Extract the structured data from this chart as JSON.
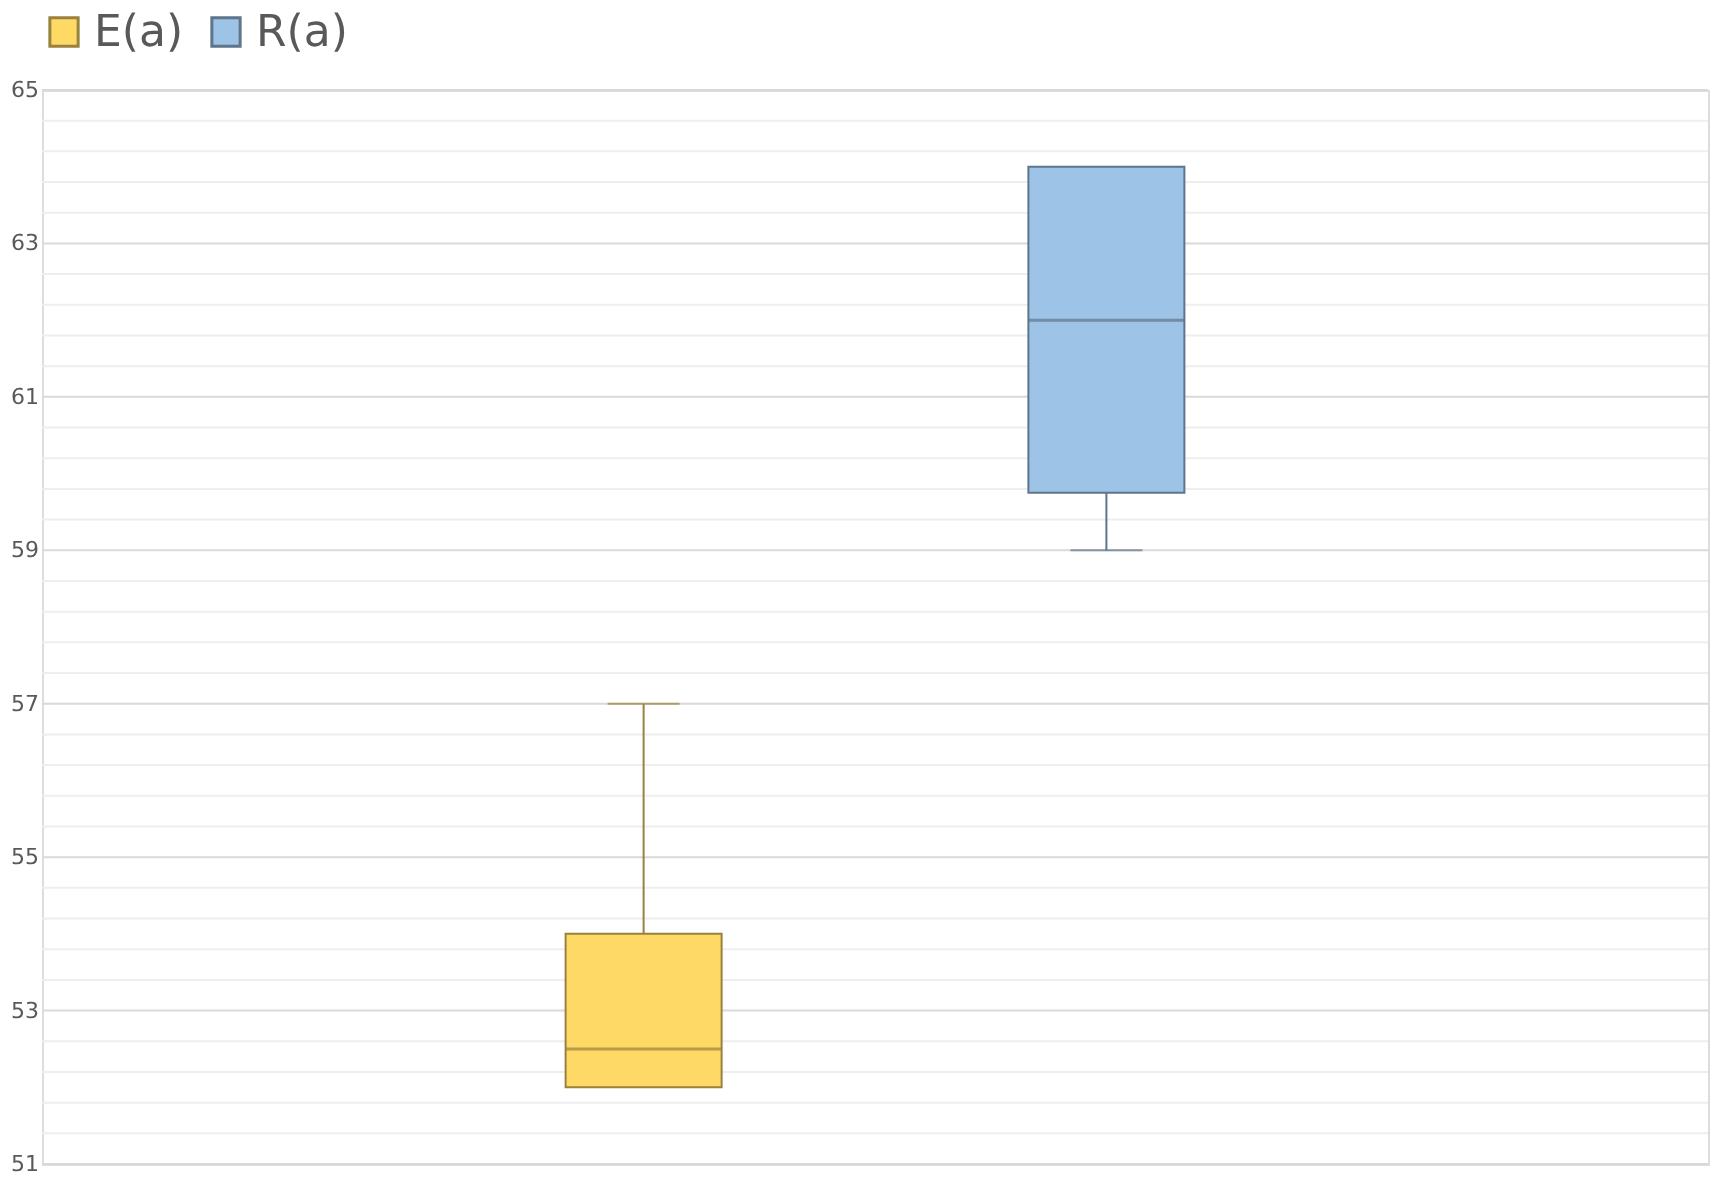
{
  "chart_data": {
    "type": "box",
    "categories": [
      null
    ],
    "legend": "top",
    "grid": "y",
    "ylim": [
      51,
      65
    ],
    "yticks": [
      51,
      {
        "value": 51.4,
        "label": null
      },
      {
        "value": 51.8,
        "label": null
      },
      {
        "value": 52.2,
        "label": null
      },
      {
        "value": 52.6,
        "label": null
      },
      53,
      {
        "value": 53.4,
        "label": null
      },
      {
        "value": 53.8,
        "label": null
      },
      {
        "value": 54.2,
        "label": null
      },
      {
        "value": 54.6,
        "label": null
      },
      55,
      {
        "value": 55.4,
        "label": null
      },
      {
        "value": 55.8,
        "label": null
      },
      {
        "value": 56.2,
        "label": null
      },
      {
        "value": 56.6,
        "label": null
      },
      57,
      {
        "value": 57.4,
        "label": null
      },
      {
        "value": 57.8,
        "label": null
      },
      {
        "value": 58.2,
        "label": null
      },
      {
        "value": 58.6,
        "label": null
      },
      59,
      {
        "value": 59.4,
        "label": null
      },
      {
        "value": 59.8,
        "label": null
      },
      {
        "value": 60.2,
        "label": null
      },
      {
        "value": 60.6,
        "label": null
      },
      61,
      {
        "value": 61.4,
        "label": null
      },
      {
        "value": 61.8,
        "label": null
      },
      {
        "value": 62.2,
        "label": null
      },
      {
        "value": 62.6,
        "label": null
      },
      63,
      {
        "value": 63.4,
        "label": null
      },
      {
        "value": 63.8,
        "label": null
      },
      {
        "value": 64.2,
        "label": null
      },
      {
        "value": 64.6,
        "label": null
      },
      65
    ],
    "series": [
      {
        "name": "E(a)",
        "color": "#ffd966",
        "boxes": [
          {
            "low": 52,
            "q1": 52,
            "median": 52.5,
            "q3": 54,
            "high": 57
          }
        ]
      },
      {
        "name": "R(a)",
        "color": "#9dc3e6",
        "boxes": [
          {
            "low": 59,
            "q1": 59.75,
            "median": 62,
            "q3": 64,
            "high": 64
          }
        ]
      }
    ]
  }
}
